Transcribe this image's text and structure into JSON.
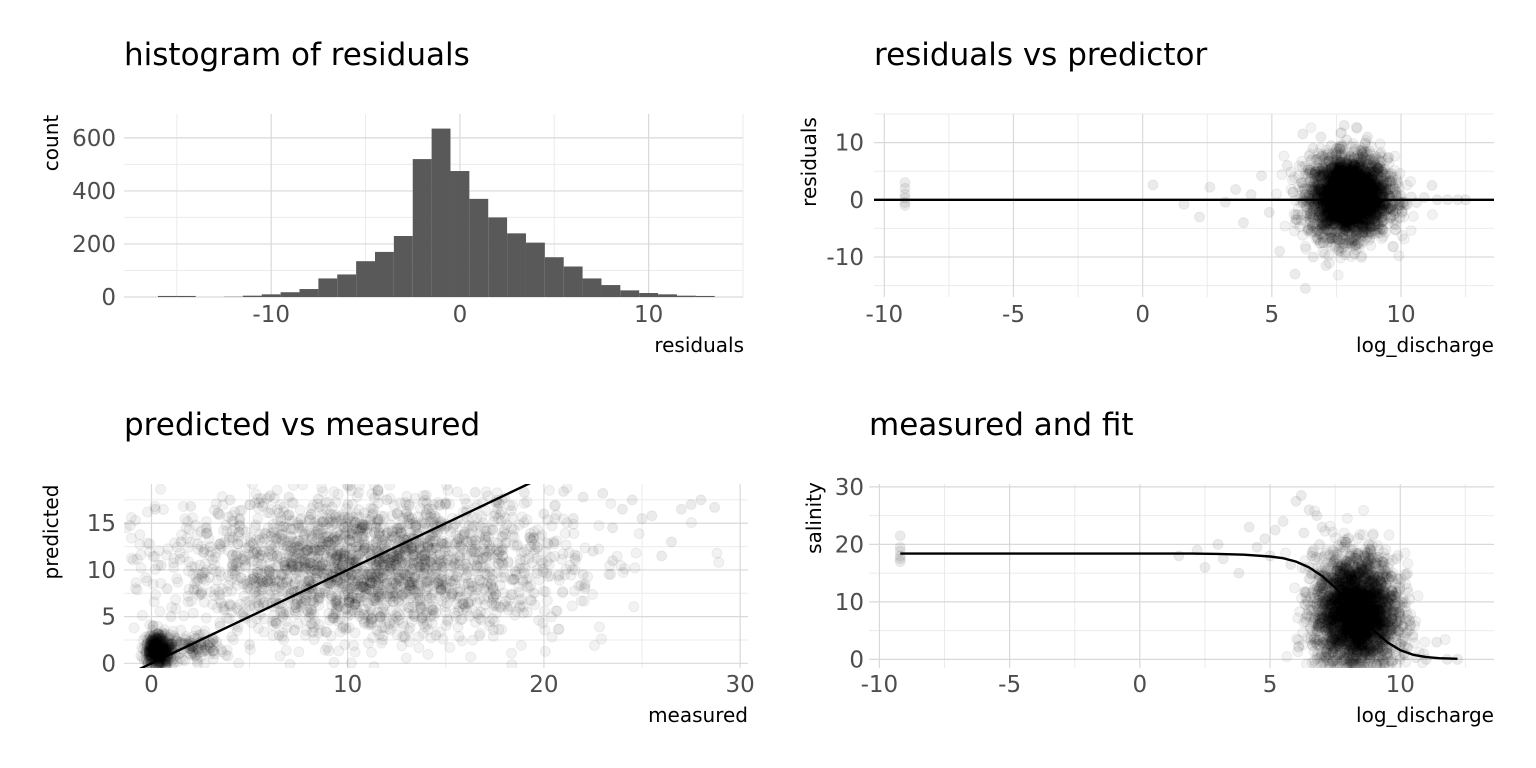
{
  "chart_data": [
    {
      "type": "bar",
      "title": "histogram of residuals",
      "xlabel": "residuals",
      "ylabel": "count",
      "xlim": [
        -17.8,
        15
      ],
      "ylim": [
        0,
        690
      ],
      "x_ticks": [
        -10,
        0,
        10
      ],
      "x_tick_labels": [
        "-10",
        "0",
        "10"
      ],
      "y_ticks": [
        0,
        200,
        400,
        600
      ],
      "y_tick_labels": [
        "0",
        "200",
        "400",
        "600"
      ],
      "bin_width": 1,
      "bins": [
        {
          "center": -15.5,
          "value": 4
        },
        {
          "center": -14.5,
          "value": 4
        },
        {
          "center": -12.0,
          "value": 1
        },
        {
          "center": -11.0,
          "value": 5
        },
        {
          "center": -10.0,
          "value": 10
        },
        {
          "center": -9.0,
          "value": 18
        },
        {
          "center": -8.0,
          "value": 30
        },
        {
          "center": -7.0,
          "value": 70
        },
        {
          "center": -6.0,
          "value": 85
        },
        {
          "center": -5.0,
          "value": 135
        },
        {
          "center": -4.0,
          "value": 170
        },
        {
          "center": -3.0,
          "value": 230
        },
        {
          "center": -2.0,
          "value": 520
        },
        {
          "center": -1.0,
          "value": 635
        },
        {
          "center": 0.0,
          "value": 475
        },
        {
          "center": 1.0,
          "value": 370
        },
        {
          "center": 2.0,
          "value": 300
        },
        {
          "center": 3.0,
          "value": 240
        },
        {
          "center": 4.0,
          "value": 205
        },
        {
          "center": 5.0,
          "value": 150
        },
        {
          "center": 6.0,
          "value": 115
        },
        {
          "center": 7.0,
          "value": 70
        },
        {
          "center": 8.0,
          "value": 45
        },
        {
          "center": 9.0,
          "value": 25
        },
        {
          "center": 10.0,
          "value": 15
        },
        {
          "center": 11.0,
          "value": 10
        },
        {
          "center": 12.0,
          "value": 5
        },
        {
          "center": 13.0,
          "value": 4
        }
      ]
    },
    {
      "type": "scatter",
      "title": "residuals vs predictor",
      "xlabel": "log_discharge",
      "ylabel": "residuals",
      "xlim": [
        -10.4,
        13.6
      ],
      "ylim": [
        -17,
        15
      ],
      "x_ticks": [
        -10,
        -5,
        0,
        5,
        10
      ],
      "x_tick_labels": [
        "-10",
        "-5",
        "0",
        "5",
        "10"
      ],
      "y_ticks": [
        -10,
        0,
        10
      ],
      "y_tick_labels": [
        "-10",
        "0",
        "10"
      ],
      "reference_line": {
        "kind": "horizontal",
        "y": 0
      },
      "points": [
        [
          -9.2,
          3.0
        ],
        [
          -9.2,
          2.0
        ],
        [
          -9.2,
          1.0
        ],
        [
          -9.2,
          0.3
        ],
        [
          -9.2,
          -0.5
        ],
        [
          -9.2,
          -1.0
        ],
        [
          0.4,
          2.6
        ],
        [
          1.6,
          -0.8
        ],
        [
          2.2,
          -3.0
        ],
        [
          2.6,
          2.2
        ],
        [
          3.2,
          -0.4
        ],
        [
          3.6,
          1.8
        ],
        [
          3.9,
          -4.0
        ],
        [
          4.2,
          0.9
        ],
        [
          4.6,
          4.2
        ],
        [
          4.9,
          -2.2
        ],
        [
          5.3,
          -9.0
        ],
        [
          5.6,
          6.0
        ],
        [
          5.9,
          -13.0
        ],
        [
          6.3,
          -15.5
        ],
        [
          6.2,
          11.5
        ],
        [
          6.4,
          -5.0
        ],
        [
          6.4,
          4.5
        ],
        [
          6.6,
          -10.0
        ],
        [
          6.6,
          9.0
        ],
        [
          6.8,
          -7.0
        ],
        [
          6.8,
          2.0
        ],
        [
          6.9,
          11.0
        ],
        [
          7.0,
          -3.0
        ],
        [
          7.0,
          7.0
        ],
        [
          7.1,
          -11.5
        ],
        [
          7.2,
          0.5
        ],
        [
          7.2,
          5.0
        ],
        [
          7.3,
          -8.0
        ],
        [
          7.3,
          9.5
        ],
        [
          7.4,
          -2.0
        ],
        [
          7.4,
          3.5
        ],
        [
          7.5,
          -5.5
        ],
        [
          7.5,
          8.0
        ],
        [
          7.6,
          1.0
        ],
        [
          7.6,
          -9.0
        ],
        [
          7.7,
          6.0
        ],
        [
          7.7,
          -4.0
        ],
        [
          7.8,
          2.5
        ],
        [
          7.8,
          13.0
        ],
        [
          7.9,
          -1.0
        ],
        [
          7.9,
          10.5
        ],
        [
          8.0,
          -7.0
        ],
        [
          8.0,
          4.0
        ],
        [
          8.1,
          0.0
        ],
        [
          8.1,
          -3.5
        ],
        [
          8.2,
          7.5
        ],
        [
          8.2,
          -9.5
        ],
        [
          8.3,
          2.0
        ],
        [
          8.3,
          12.5
        ],
        [
          8.4,
          -1.5
        ],
        [
          8.4,
          5.5
        ],
        [
          8.5,
          -6.0
        ],
        [
          8.5,
          9.0
        ],
        [
          8.6,
          1.0
        ],
        [
          8.6,
          -3.0
        ],
        [
          8.7,
          11.0
        ],
        [
          8.7,
          4.0
        ],
        [
          8.8,
          -5.0
        ],
        [
          8.8,
          0.0
        ],
        [
          8.9,
          7.0
        ],
        [
          8.9,
          -2.0
        ],
        [
          9.0,
          3.0
        ],
        [
          9.0,
          -4.5
        ],
        [
          9.1,
          5.5
        ],
        [
          9.1,
          -1.0
        ],
        [
          9.2,
          8.0
        ],
        [
          9.3,
          2.0
        ],
        [
          9.3,
          -3.0
        ],
        [
          9.4,
          4.5
        ],
        [
          9.5,
          -1.5
        ],
        [
          9.5,
          1.0
        ],
        [
          9.6,
          3.0
        ],
        [
          9.7,
          -2.0
        ],
        [
          9.8,
          1.5
        ],
        [
          9.9,
          -1.0
        ],
        [
          10.0,
          0.8
        ],
        [
          10.2,
          -0.8
        ],
        [
          10.4,
          0.5
        ],
        [
          10.6,
          -0.5
        ],
        [
          10.9,
          0.4
        ],
        [
          11.2,
          2.5
        ],
        [
          11.4,
          0.0
        ],
        [
          11.8,
          0.0
        ],
        [
          12.2,
          0.0
        ],
        [
          12.5,
          0.0
        ]
      ],
      "dense_regions": [
        {
          "x_center": 8.0,
          "y_center": 0.5,
          "x_spread": 0.75,
          "y_spread": 3.4,
          "count": 3600
        }
      ]
    },
    {
      "type": "scatter",
      "title": "predicted vs measured",
      "xlabel": "measured",
      "ylabel": "predicted",
      "xlim": [
        -1.4,
        30.4
      ],
      "ylim": [
        -0.5,
        19.2
      ],
      "x_ticks": [
        0,
        10,
        20,
        30
      ],
      "x_tick_labels": [
        "0",
        "10",
        "20",
        "30"
      ],
      "y_ticks": [
        0,
        5,
        10,
        15
      ],
      "y_tick_labels": [
        "0",
        "5",
        "10",
        "15"
      ],
      "reference_line": {
        "kind": "identity",
        "slope": 1,
        "intercept": 0
      },
      "points": [
        [
          0.2,
          16.5
        ],
        [
          0.5,
          10.5
        ],
        [
          0.8,
          8.0
        ],
        [
          1.0,
          5.0
        ],
        [
          1.5,
          13.0
        ],
        [
          2.0,
          16.8
        ],
        [
          2.5,
          7.5
        ],
        [
          3.0,
          12.5
        ],
        [
          3.5,
          4.0
        ],
        [
          4.0,
          17.5
        ],
        [
          4.5,
          15.5
        ],
        [
          5.0,
          2.0
        ],
        [
          5.5,
          17.2
        ],
        [
          6.0,
          12.0
        ],
        [
          6.5,
          3.0
        ],
        [
          7.0,
          17.8
        ],
        [
          7.5,
          14.5
        ],
        [
          8.0,
          5.5
        ],
        [
          8.5,
          17.6
        ],
        [
          9.0,
          13.0
        ],
        [
          9.5,
          4.5
        ],
        [
          10.0,
          17.0
        ],
        [
          11.0,
          14.0
        ],
        [
          11.5,
          3.5
        ],
        [
          12.0,
          17.5
        ],
        [
          13.0,
          16.0
        ],
        [
          14.0,
          18.0
        ],
        [
          14.5,
          3.0
        ],
        [
          15.0,
          17.2
        ],
        [
          16.0,
          6.0
        ],
        [
          16.5,
          18.3
        ],
        [
          17.0,
          13.5
        ],
        [
          18.0,
          17.7
        ],
        [
          18.5,
          9.0
        ],
        [
          19.0,
          18.3
        ],
        [
          20.0,
          16.0
        ],
        [
          20.5,
          13.0
        ],
        [
          21.0,
          18.4
        ],
        [
          21.5,
          15.5
        ],
        [
          22.0,
          17.8
        ],
        [
          22.5,
          12.0
        ],
        [
          23.0,
          18.2
        ],
        [
          23.5,
          14.5
        ],
        [
          24.0,
          16.5
        ],
        [
          24.5,
          17.5
        ],
        [
          25.0,
          15.5
        ],
        [
          26.0,
          11.5
        ],
        [
          26.5,
          13.0
        ],
        [
          27.0,
          16.5
        ],
        [
          27.5,
          17.0
        ],
        [
          28.0,
          17.5
        ],
        [
          28.7,
          16.7
        ],
        [
          19.5,
          7.5
        ],
        [
          22.0,
          9.5
        ],
        [
          23.5,
          11.0
        ],
        [
          25.5,
          15.8
        ],
        [
          0.1,
          0.3
        ],
        [
          0.3,
          0.5
        ],
        [
          0.2,
          2.5
        ],
        [
          0.4,
          1.0
        ],
        [
          0.1,
          4.0
        ],
        [
          0.6,
          1.8
        ],
        [
          0.3,
          3.2
        ],
        [
          0.8,
          0.8
        ]
      ],
      "dense_regions": [
        {
          "x_center": 0.35,
          "y_center": 1.4,
          "x_spread": 0.35,
          "y_spread": 0.9,
          "count": 450
        },
        {
          "x_center": 2.0,
          "y_center": 1.6,
          "x_spread": 0.9,
          "y_spread": 0.7,
          "count": 120
        },
        {
          "x_center": 11.0,
          "y_center": 10.5,
          "x_spread": 5.0,
          "y_spread": 3.8,
          "count": 2400
        }
      ]
    },
    {
      "type": "scatter",
      "title": "measured and fit",
      "xlabel": "log_discharge",
      "ylabel": "salinity",
      "xlim": [
        -10.4,
        13.6
      ],
      "ylim": [
        -1.5,
        30.5
      ],
      "x_ticks": [
        -10,
        -5,
        0,
        5,
        10
      ],
      "x_tick_labels": [
        "-10",
        "-5",
        "0",
        "5",
        "10"
      ],
      "y_ticks": [
        0,
        10,
        20,
        30
      ],
      "y_tick_labels": [
        "0",
        "10",
        "20",
        "30"
      ],
      "fit_curve": [
        [
          -9.2,
          18.4
        ],
        [
          -6,
          18.4
        ],
        [
          -3,
          18.4
        ],
        [
          0,
          18.4
        ],
        [
          2,
          18.4
        ],
        [
          3,
          18.35
        ],
        [
          4,
          18.2
        ],
        [
          5,
          17.9
        ],
        [
          5.5,
          17.6
        ],
        [
          6,
          17.0
        ],
        [
          6.5,
          16.0
        ],
        [
          7,
          14.5
        ],
        [
          7.5,
          12.5
        ],
        [
          8,
          10.0
        ],
        [
          8.5,
          7.5
        ],
        [
          9,
          5.0
        ],
        [
          9.5,
          3.0
        ],
        [
          10,
          1.6
        ],
        [
          10.5,
          0.8
        ],
        [
          11,
          0.4
        ],
        [
          11.5,
          0.2
        ],
        [
          12.2,
          0.1
        ]
      ],
      "points": [
        [
          -9.2,
          21.5
        ],
        [
          -9.2,
          19.5
        ],
        [
          -9.2,
          18.8
        ],
        [
          -9.2,
          18.0
        ],
        [
          -9.2,
          17.5
        ],
        [
          -9.2,
          17.0
        ],
        [
          1.5,
          18.0
        ],
        [
          2.2,
          19.0
        ],
        [
          2.5,
          16.0
        ],
        [
          3.0,
          20.0
        ],
        [
          3.2,
          17.5
        ],
        [
          3.8,
          15.0
        ],
        [
          4.2,
          23.0
        ],
        [
          4.5,
          19.5
        ],
        [
          4.8,
          21.0
        ],
        [
          5.0,
          18.0
        ],
        [
          5.2,
          22.5
        ],
        [
          5.5,
          24.0
        ],
        [
          5.8,
          16.5
        ],
        [
          6.0,
          27.5
        ],
        [
          6.2,
          28.5
        ],
        [
          6.3,
          22.0
        ],
        [
          6.5,
          26.0
        ],
        [
          6.6,
          18.0
        ],
        [
          6.8,
          25.0
        ],
        [
          6.9,
          20.0
        ],
        [
          7.0,
          23.0
        ],
        [
          7.1,
          16.0
        ],
        [
          7.2,
          12.0
        ],
        [
          7.4,
          19.0
        ],
        [
          7.5,
          8.0
        ],
        [
          7.6,
          15.5
        ],
        [
          7.8,
          10.0
        ],
        [
          8.0,
          14.0
        ],
        [
          8.1,
          6.0
        ],
        [
          8.3,
          11.0
        ],
        [
          8.5,
          3.0
        ],
        [
          8.6,
          8.5
        ],
        [
          8.8,
          5.5
        ],
        [
          9.0,
          2.0
        ],
        [
          9.2,
          6.0
        ],
        [
          9.4,
          3.5
        ],
        [
          9.6,
          1.0
        ],
        [
          9.8,
          4.0
        ],
        [
          10.0,
          0.5
        ],
        [
          10.3,
          2.0
        ],
        [
          10.6,
          0.3
        ],
        [
          10.9,
          1.0
        ],
        [
          11.0,
          0.0
        ],
        [
          11.4,
          3.0
        ],
        [
          11.8,
          0.0
        ],
        [
          12.2,
          0.0
        ]
      ],
      "dense_regions": [
        {
          "x_center": 8.3,
          "y_center": 8.0,
          "x_spread": 0.8,
          "y_spread": 5.0,
          "count": 3200
        }
      ]
    }
  ]
}
